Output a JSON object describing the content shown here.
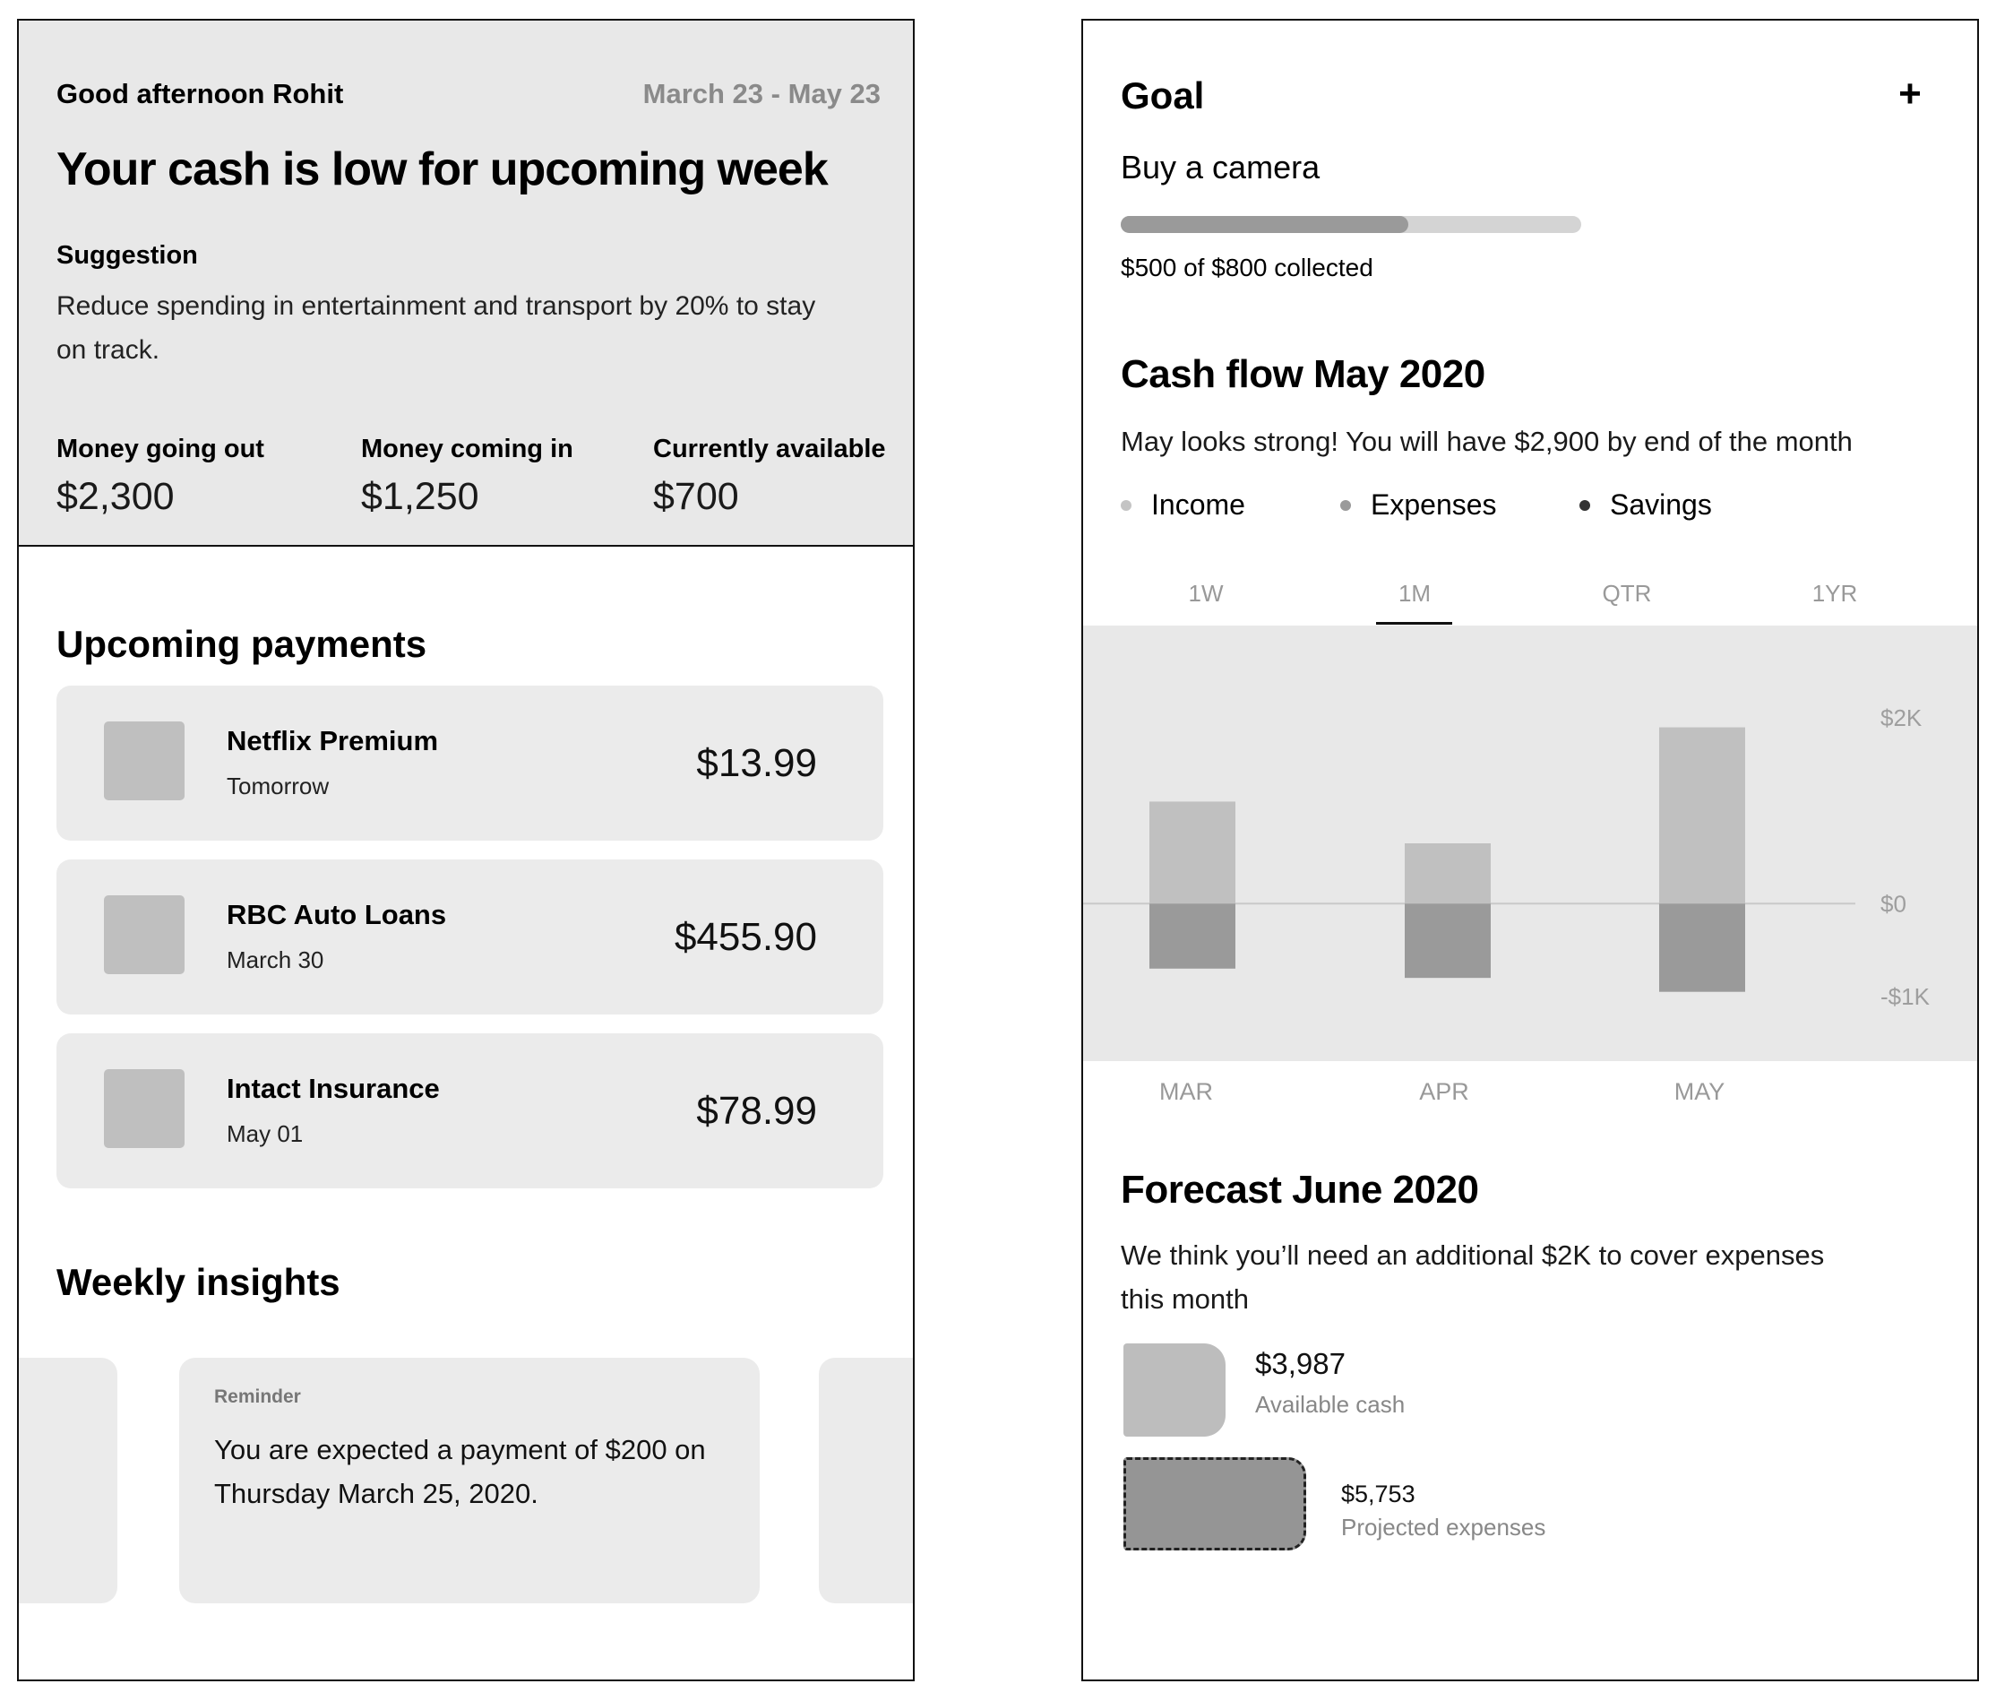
{
  "left": {
    "greeting": "Good afternoon Rohit",
    "date_range": "March 23 - May 23",
    "headline": "Your cash is low for upcoming week",
    "suggestion_title": "Suggestion",
    "suggestion_text": "Reduce spending in entertainment and transport by 20% to stay on track.",
    "stats": [
      {
        "label": "Money going out",
        "value": "$2,300"
      },
      {
        "label": "Money coming in",
        "value": "$1,250"
      },
      {
        "label": "Currently available",
        "value": "$700"
      }
    ],
    "upcoming_title": "Upcoming payments",
    "payments": [
      {
        "name": "Netflix Premium",
        "date": "Tomorrow",
        "amount": "$13.99"
      },
      {
        "name": "RBC Auto Loans",
        "date": "March 30",
        "amount": "$455.90"
      },
      {
        "name": "Intact Insurance",
        "date": "May 01",
        "amount": "$78.99"
      }
    ],
    "insights_title": "Weekly insights",
    "insight": {
      "kind": "Reminder",
      "message": "You are expected a payment of $200 on Thursday March 25, 2020."
    }
  },
  "right": {
    "goal_title": "Goal",
    "add_symbol": "+",
    "goal_name": "Buy a camera",
    "goal_progress": 0.625,
    "goal_status": "$500 of $800 collected",
    "cashflow_title": "Cash flow May 2020",
    "cashflow_subtitle": "May looks strong! You will have $2,900 by end of the month",
    "legend": [
      {
        "label": "Income",
        "color": "#c4c4c4"
      },
      {
        "label": "Expenses",
        "color": "#9a9a9a"
      },
      {
        "label": "Savings",
        "color": "#333333"
      }
    ],
    "tabs": [
      "1W",
      "1M",
      "QTR",
      "1YR"
    ],
    "active_tab": "1M",
    "forecast_title": "Forecast June 2020",
    "forecast_text": "We think you’ll need an additional $2K to cover expenses this month",
    "available_cash_value": "$3,987",
    "available_cash_label": "Available cash",
    "projected_value": "$5,753",
    "projected_label": "Projected expenses"
  },
  "chart_data": {
    "type": "bar",
    "categories": [
      "MAR",
      "APR",
      "MAY"
    ],
    "series": [
      {
        "name": "Income",
        "values": [
          1100,
          650,
          1900
        ],
        "color": "#c0c0c0"
      },
      {
        "name": "Expenses",
        "values": [
          -700,
          -800,
          -950
        ],
        "color": "#9a9a9a"
      }
    ],
    "y_ticks": [
      {
        "value": 2000,
        "label": "$2K"
      },
      {
        "value": 0,
        "label": "$0"
      },
      {
        "value": -1000,
        "label": "-$1K"
      }
    ],
    "ylim": [
      -1600,
      2900
    ],
    "grid": false,
    "zero_line": true
  }
}
